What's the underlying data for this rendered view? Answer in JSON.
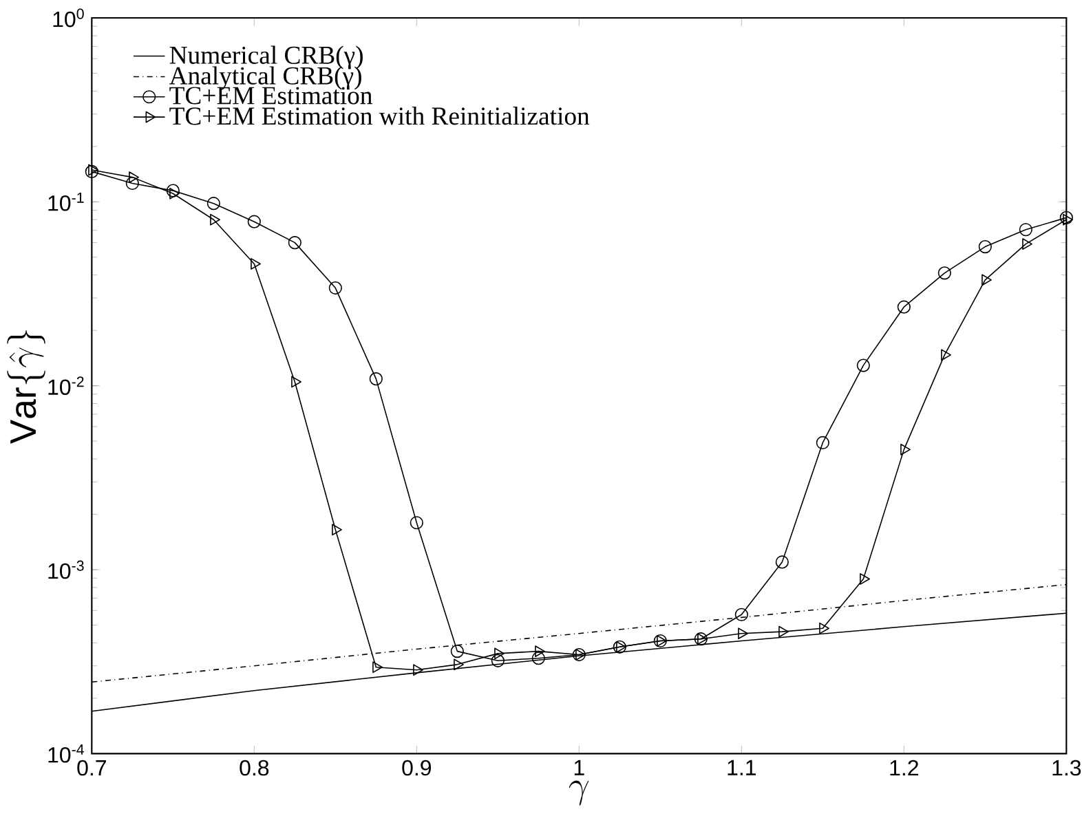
{
  "chart_data": {
    "type": "line",
    "xlabel": "\\gamma",
    "ylabel": "\\mathrm{Var}\\{\\hat{\\gamma}\\}",
    "log": "y",
    "grid": false,
    "legend": "top left",
    "xlim": [
      0.7,
      1.3
    ],
    "xticks": [
      0.7,
      0.8,
      0.9,
      1,
      1.1,
      1.2,
      1.3
    ],
    "ylim": [
      0.0001,
      1
    ],
    "yticks": [
      {
        "value": 0.0001,
        "label": "10$^{-4}$"
      },
      {
        "value": 0.001,
        "label": "10$^{-3}$"
      },
      {
        "value": 0.01,
        "label": "10$^{-2}$"
      },
      {
        "value": 0.1,
        "label": "10$^{-1}$"
      },
      {
        "value": 1,
        "label": "10$^{0}$"
      }
    ],
    "series": [
      {
        "name": "Numerical CRB(γ)",
        "color": "#000000",
        "marker": "none",
        "line_style": "solid",
        "x": [
          0.7,
          0.8,
          0.9,
          1.0,
          1.1,
          1.2,
          1.3
        ],
        "values": [
          0.00017,
          0.00022,
          0.000275,
          0.00034,
          0.00041,
          0.00049,
          0.00058
        ]
      },
      {
        "name": "Analytical CRB(γ)",
        "color": "#000000",
        "marker": "none",
        "line_style": "dashdot",
        "x": [
          0.7,
          0.8,
          0.9,
          1.0,
          1.1,
          1.2,
          1.3
        ],
        "values": [
          0.000245,
          0.0003,
          0.00037,
          0.00045,
          0.00055,
          0.00068,
          0.00083
        ]
      },
      {
        "name": "TC+EM Estimation",
        "color": "#000000",
        "marker": "circle",
        "line_style": "solid",
        "x": [
          0.7,
          0.725,
          0.75,
          0.775,
          0.8,
          0.825,
          0.85,
          0.875,
          0.9,
          0.925,
          0.95,
          0.975,
          1.0,
          1.025,
          1.05,
          1.075,
          1.1,
          1.125,
          1.15,
          1.175,
          1.2,
          1.225,
          1.25,
          1.275,
          1.3
        ],
        "values": [
          0.146,
          0.126,
          0.115,
          0.098,
          0.078,
          0.06,
          0.034,
          0.0109,
          0.0018,
          0.00036,
          0.00032,
          0.00033,
          0.000345,
          0.00038,
          0.00041,
          0.00042,
          0.00057,
          0.0011,
          0.0049,
          0.0129,
          0.0268,
          0.041,
          0.057,
          0.0706,
          0.082
        ]
      },
      {
        "name": "TC+EM Estimation with Reinitialization",
        "color": "#000000",
        "marker": "triangle",
        "line_style": "solid",
        "x": [
          0.7,
          0.725,
          0.75,
          0.775,
          0.8,
          0.825,
          0.85,
          0.875,
          0.9,
          0.925,
          0.95,
          0.975,
          1.0,
          1.025,
          1.05,
          1.075,
          1.1,
          1.125,
          1.15,
          1.175,
          1.2,
          1.225,
          1.25,
          1.275,
          1.3
        ],
        "values": [
          0.149,
          0.136,
          0.111,
          0.08,
          0.046,
          0.0105,
          0.00165,
          0.000295,
          0.000285,
          0.000305,
          0.00035,
          0.00036,
          0.000345,
          0.00038,
          0.00041,
          0.00042,
          0.00045,
          0.00046,
          0.00048,
          0.00089,
          0.0045,
          0.0147,
          0.0376,
          0.059,
          0.08
        ]
      }
    ]
  }
}
